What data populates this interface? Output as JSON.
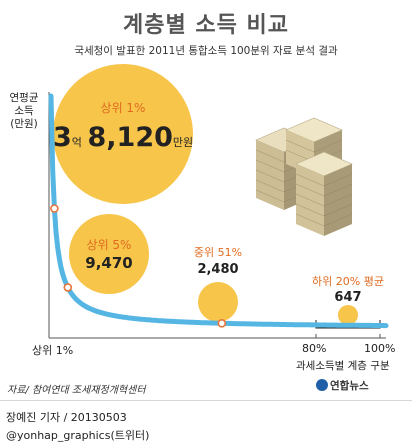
{
  "header": {
    "title": "계층별 소득 비교",
    "subtitle": "국세청이 발표한 2011년 통합소득 100분위 자료 분석 결과"
  },
  "axis": {
    "y_label_line1": "연평균",
    "y_label_line2": "소득",
    "y_label_line3": "(만원)",
    "x_label": "과세소득별 계층 구분",
    "x_tick_start": "상위 1%",
    "x_tick_80": "80%",
    "x_tick_100": "100%"
  },
  "chart_data": {
    "type": "line",
    "title": "계층별 소득 비교",
    "subtitle": "국세청이 발표한 2011년 통합소득 100분위 자료 분석 결과",
    "ylabel": "연평균 소득 (만원)",
    "xlabel": "과세소득별 계층 구분",
    "x_ticks": [
      "상위 1%",
      "80%",
      "100%"
    ],
    "points": [
      {
        "label": "상위 1%",
        "x": 1,
        "value": 38120,
        "display_value": "3억 8,120"
      },
      {
        "label": "상위 5%",
        "x": 5,
        "value": 9470,
        "display_value": "9,470"
      },
      {
        "label": "중위 51%",
        "x": 51,
        "value": 2480,
        "display_value": "2,480"
      },
      {
        "label": "하위 20% 평균",
        "x": 90,
        "value": 647,
        "display_value": "647"
      }
    ],
    "colors": {
      "curve": "#55b6e3",
      "bubble": "#f7c54a",
      "marker": "#e8743a",
      "label": "#e06b1f"
    }
  },
  "bubbles": {
    "top1": {
      "label": "상위 1%",
      "big": "3",
      "unit_eok": "억",
      "rest": "8,120",
      "unit_man": "만원"
    },
    "top5": {
      "label": "상위 5%",
      "value": "9,470"
    },
    "mid51": {
      "label": "중위 51%",
      "value": "2,480"
    },
    "bottom20": {
      "label": "하위 20% 평균",
      "value": "647"
    }
  },
  "footer": {
    "source": "자료/ 참여연대 조세재정개혁센터",
    "logo": "연합뉴스",
    "reporter": "장예진 기자 / 20130503",
    "twitter": "@yonhap_graphics(트위터)"
  }
}
